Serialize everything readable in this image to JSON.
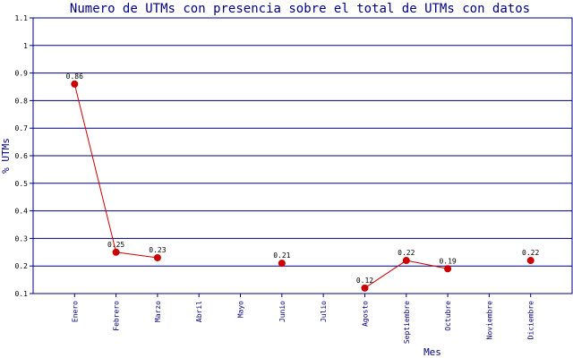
{
  "chart_data": {
    "type": "line",
    "title": "Numero de UTMs con presencia sobre el total de UTMs con datos",
    "xlabel": "Mes",
    "ylabel": "% UTMs",
    "ylim": [
      0.1,
      1.1
    ],
    "yticks": [
      "0.1",
      "0.2",
      "0.3",
      "0.4",
      "0.5",
      "0.6",
      "0.7",
      "0.8",
      "0.9",
      "1",
      "1.1"
    ],
    "categories": [
      "Enero",
      "Febrero",
      "Marzo",
      "Abril",
      "Mayo",
      "Junio",
      "Julio",
      "Agosto",
      "Septiembre",
      "Octubre",
      "Noviembre",
      "Diciembre"
    ],
    "values": [
      0.86,
      0.25,
      0.23,
      null,
      null,
      0.21,
      null,
      0.12,
      0.22,
      0.19,
      null,
      0.22
    ],
    "data_labels": [
      "0.86",
      "0.25",
      "0.23",
      null,
      null,
      "0.21",
      null,
      "0.12",
      "0.22",
      "0.19",
      null,
      "0.22"
    ],
    "grid": "horizontal",
    "colors": {
      "series": "#cc0000",
      "grid": "#000080",
      "text": "#000080"
    }
  }
}
